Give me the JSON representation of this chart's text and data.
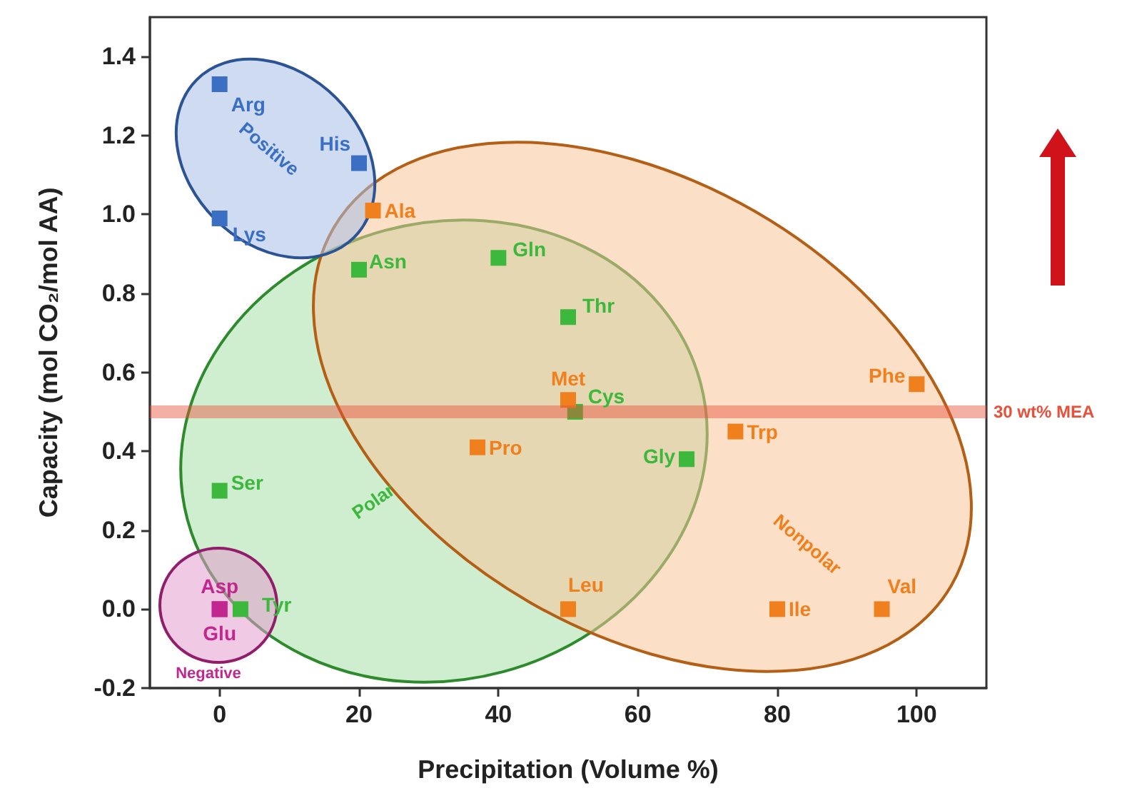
{
  "chart_data": {
    "type": "scatter",
    "xlabel": "Precipitation (Volume %)",
    "ylabel": "Capacity (mol CO₂/mol AA)",
    "xlim": [
      -10,
      110
    ],
    "xticks": [
      0,
      20,
      40,
      60,
      80,
      100
    ],
    "ylim": [
      -0.2,
      1.5
    ],
    "yticks": [
      -0.2,
      {
        "value": 0,
        "label": "0.0"
      },
      0.2,
      0.4,
      0.6,
      0.8,
      {
        "value": 1,
        "label": "1.0"
      },
      1.2,
      1.4
    ],
    "marker": "square",
    "series": [
      {
        "name": "Polar",
        "color": "#3cb83c",
        "x": [
          20,
          40,
          50,
          51,
          67,
          0,
          3
        ],
        "values": [
          0.86,
          0.89,
          0.74,
          0.5,
          0.38,
          0.3,
          0
        ]
      },
      {
        "name": "Nonpolar",
        "color": "#f07f1d",
        "x": [
          22,
          50,
          100,
          74,
          37,
          50,
          80,
          95
        ],
        "values": [
          1.01,
          0.53,
          0.57,
          0.45,
          0.41,
          0,
          0,
          0
        ]
      },
      {
        "name": "Positive",
        "color": "#3a6fc4",
        "x": [
          0,
          20,
          0
        ],
        "values": [
          1.33,
          1.13,
          0.99
        ]
      },
      {
        "name": "Negative",
        "color": "#c2268f",
        "x": [
          0,
          0
        ],
        "values": [
          0,
          0
        ]
      }
    ],
    "ref_lines": [
      {
        "axis": "y",
        "value": 0.5,
        "label": "30 wt% MEA",
        "color": "#e8503a"
      }
    ],
    "annotations": [
      {
        "text": "Arg",
        "x": 0,
        "y": 1.33
      },
      {
        "text": "His",
        "x": 20,
        "y": 1.13
      },
      {
        "text": "Lys",
        "x": 0,
        "y": 0.99
      },
      {
        "text": "Ala",
        "x": 22,
        "y": 1.01
      },
      {
        "text": "Asn",
        "x": 20,
        "y": 0.86
      },
      {
        "text": "Gln",
        "x": 40,
        "y": 0.89
      },
      {
        "text": "Thr",
        "x": 50,
        "y": 0.74
      },
      {
        "text": "Met",
        "x": 50,
        "y": 0.53
      },
      {
        "text": "Cys",
        "x": 51,
        "y": 0.5
      },
      {
        "text": "Phe",
        "x": 100,
        "y": 0.57
      },
      {
        "text": "Trp",
        "x": 74,
        "y": 0.45
      },
      {
        "text": "Gly",
        "x": 67,
        "y": 0.38
      },
      {
        "text": "Leu",
        "x": 50,
        "y": 0
      },
      {
        "text": "Ile",
        "x": 80,
        "y": 0
      },
      {
        "text": "Val",
        "x": 95,
        "y": 0
      },
      {
        "text": "Pro",
        "x": 37,
        "y": 0.41
      },
      {
        "text": "Ser",
        "x": 0,
        "y": 0.3
      },
      {
        "text": "Asp",
        "x": 0,
        "y": 0
      },
      {
        "text": "Glu",
        "x": 0,
        "y": 0
      },
      {
        "text": "Tyr",
        "x": 3,
        "y": 0
      }
    ]
  }
}
